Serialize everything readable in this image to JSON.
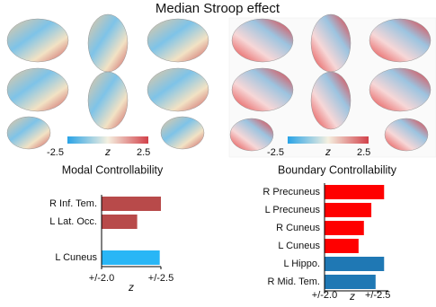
{
  "title": "Median Stroop effect",
  "colorbars": [
    {
      "min_label": "-2.5",
      "axis_label": "z",
      "max_label": "2.5"
    },
    {
      "min_label": "-2.5",
      "axis_label": "z",
      "max_label": "2.5"
    }
  ],
  "chart_data": [
    {
      "type": "bar",
      "orientation": "horizontal",
      "title": "Modal Controllability",
      "categories": [
        "R Inf. Tem.",
        "L Lat. Occ.",
        null,
        "L Cuneus"
      ],
      "values": [
        2.5,
        2.3,
        null,
        2.49
      ],
      "colors": [
        "#b84a4a",
        "#b84a4a",
        null,
        "#29b6f6"
      ],
      "xlim": [
        2.0,
        2.5
      ],
      "xticks": [
        {
          "value": 2.0,
          "label": "+/-2.0"
        },
        {
          "value": 2.5,
          "label": "+/-2.5"
        }
      ],
      "xlabel": "z"
    },
    {
      "type": "bar",
      "orientation": "horizontal",
      "title": "Boundary Controllability",
      "categories": [
        "R Precuneus",
        "L Precuneus",
        "R Cuneus",
        "L Cuneus",
        "L Hippo.",
        "R Mid. Tem."
      ],
      "values": [
        2.56,
        2.44,
        2.37,
        2.32,
        2.56,
        2.48
      ],
      "colors": [
        "#ff0000",
        "#ff0000",
        "#ff0000",
        "#ff0000",
        "#1f78b4",
        "#1f78b4"
      ],
      "xlim": [
        2.0,
        2.6
      ],
      "xticks": [
        {
          "value": 2.0,
          "label": "+/-2.0"
        },
        {
          "value": 2.5,
          "label": "+/-2.5"
        }
      ],
      "xlabel": "z"
    }
  ]
}
